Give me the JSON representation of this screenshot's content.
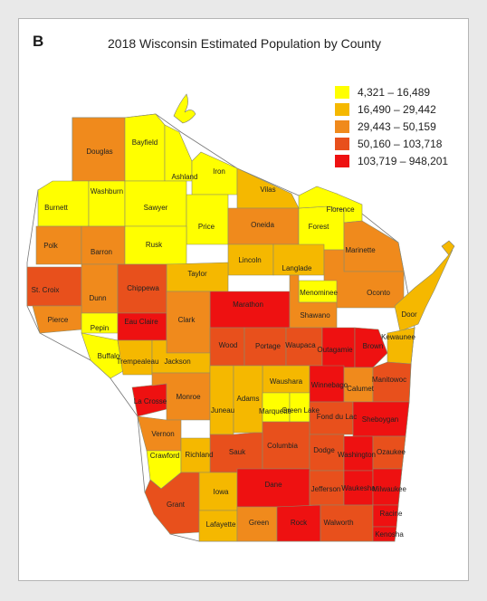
{
  "figure": {
    "panel_label": "B",
    "title": "2018 Wisconsin Estimated Population by County"
  },
  "legend": [
    {
      "label": "4,321 – 16,489",
      "color": "#ffff00"
    },
    {
      "label": "16,490 – 29,442",
      "color": "#f5b800"
    },
    {
      "label": "29,443 – 50,159",
      "color": "#f08a1c"
    },
    {
      "label": "50,160 – 103,718",
      "color": "#e8501c"
    },
    {
      "label": "103,719 – 948,201",
      "color": "#ee1111"
    }
  ],
  "counties": [
    {
      "name": "Douglas",
      "class": 2
    },
    {
      "name": "Bayfield",
      "class": 0
    },
    {
      "name": "Ashland",
      "class": 0
    },
    {
      "name": "Iron",
      "class": 0
    },
    {
      "name": "Vilas",
      "class": 1
    },
    {
      "name": "Burnett",
      "class": 0
    },
    {
      "name": "Washburn",
      "class": 0
    },
    {
      "name": "Sawyer",
      "class": 0
    },
    {
      "name": "Price",
      "class": 0
    },
    {
      "name": "Oneida",
      "class": 2
    },
    {
      "name": "Forest",
      "class": 0
    },
    {
      "name": "Florence",
      "class": 0
    },
    {
      "name": "Marinette",
      "class": 2
    },
    {
      "name": "Polk",
      "class": 2
    },
    {
      "name": "Barron",
      "class": 2
    },
    {
      "name": "Rusk",
      "class": 0
    },
    {
      "name": "Lincoln",
      "class": 1
    },
    {
      "name": "Langlade",
      "class": 1
    },
    {
      "name": "Taylor",
      "class": 1
    },
    {
      "name": "Oconto",
      "class": 2
    },
    {
      "name": "Menominee",
      "class": 0
    },
    {
      "name": "St. Croix",
      "class": 3
    },
    {
      "name": "Dunn",
      "class": 2
    },
    {
      "name": "Chippewa",
      "class": 3
    },
    {
      "name": "Marathon",
      "class": 4
    },
    {
      "name": "Shawano",
      "class": 2
    },
    {
      "name": "Door",
      "class": 1
    },
    {
      "name": "Pierce",
      "class": 2
    },
    {
      "name": "Pepin",
      "class": 0
    },
    {
      "name": "Eau Claire",
      "class": 4
    },
    {
      "name": "Clark",
      "class": 2
    },
    {
      "name": "Wood",
      "class": 3
    },
    {
      "name": "Portage",
      "class": 3
    },
    {
      "name": "Waupaca",
      "class": 3
    },
    {
      "name": "Outagamie",
      "class": 4
    },
    {
      "name": "Brown",
      "class": 4
    },
    {
      "name": "Kewaunee",
      "class": 1
    },
    {
      "name": "Buffalo",
      "class": 0
    },
    {
      "name": "Trempealeau",
      "class": 1
    },
    {
      "name": "Jackson",
      "class": 1
    },
    {
      "name": "Waushara",
      "class": 1
    },
    {
      "name": "Winnebago",
      "class": 4
    },
    {
      "name": "Calumet",
      "class": 2
    },
    {
      "name": "Manitowoc",
      "class": 3
    },
    {
      "name": "La Crosse",
      "class": 4
    },
    {
      "name": "Monroe",
      "class": 2
    },
    {
      "name": "Juneau",
      "class": 1
    },
    {
      "name": "Adams",
      "class": 1
    },
    {
      "name": "Marquette",
      "class": 0
    },
    {
      "name": "Green Lake",
      "class": 0
    },
    {
      "name": "Fond du Lac",
      "class": 3
    },
    {
      "name": "Sheboygan",
      "class": 4
    },
    {
      "name": "Vernon",
      "class": 2
    },
    {
      "name": "Sauk",
      "class": 3
    },
    {
      "name": "Columbia",
      "class": 3
    },
    {
      "name": "Dodge",
      "class": 3
    },
    {
      "name": "Washington",
      "class": 4
    },
    {
      "name": "Ozaukee",
      "class": 3
    },
    {
      "name": "Crawford",
      "class": 0
    },
    {
      "name": "Richland",
      "class": 1
    },
    {
      "name": "Iowa",
      "class": 1
    },
    {
      "name": "Dane",
      "class": 4
    },
    {
      "name": "Jefferson",
      "class": 3
    },
    {
      "name": "Waukesha",
      "class": 4
    },
    {
      "name": "Milwaukee",
      "class": 4
    },
    {
      "name": "Grant",
      "class": 3
    },
    {
      "name": "Lafayette",
      "class": 1
    },
    {
      "name": "Green",
      "class": 2
    },
    {
      "name": "Rock",
      "class": 4
    },
    {
      "name": "Walworth",
      "class": 3
    },
    {
      "name": "Racine",
      "class": 4
    },
    {
      "name": "Kenosha",
      "class": 4
    }
  ]
}
